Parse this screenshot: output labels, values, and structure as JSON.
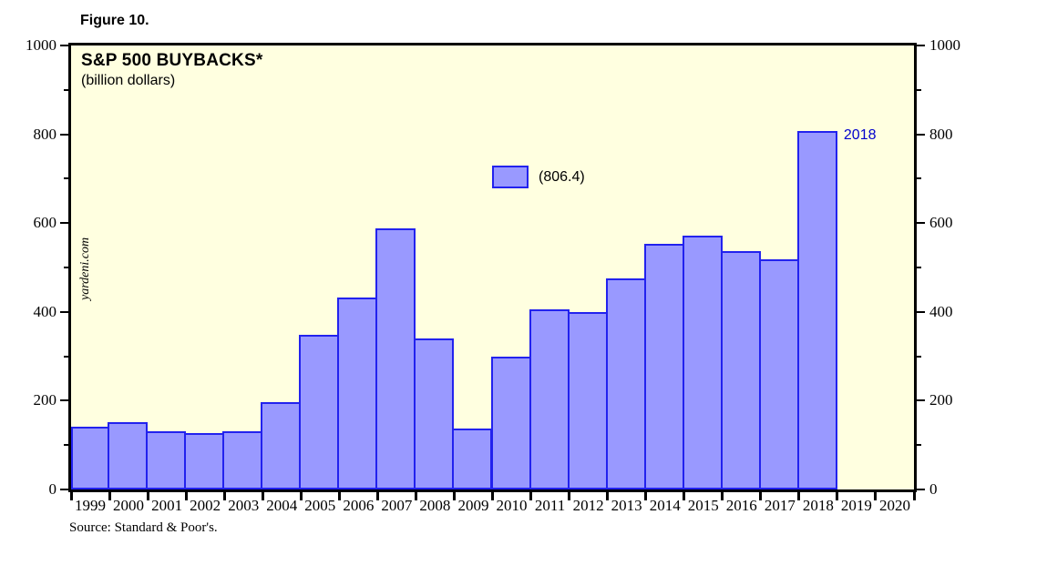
{
  "figure": {
    "label": "Figure 10."
  },
  "chart": {
    "title": "S&P 500 BUYBACKS*",
    "subtitle": "(billion dollars)",
    "watermark": "yardeni.com",
    "legend": {
      "value_label": "(806.4)"
    },
    "source": "Source: Standard & Poor's."
  },
  "colors": {
    "plot_background": "#ffffe0",
    "bar_fill": "#9999ff",
    "bar_border": "#2222ee",
    "axis": "#000000",
    "annotation_blue": "#0000cc",
    "page_background": "#ffffff"
  },
  "chart_data": {
    "type": "bar",
    "title": "S&P 500 BUYBACKS*",
    "subtitle": "(billion dollars)",
    "xlabel": "",
    "ylabel": "billion dollars",
    "categories": [
      "1999",
      "2000",
      "2001",
      "2002",
      "2003",
      "2004",
      "2005",
      "2006",
      "2007",
      "2008",
      "2009",
      "2010",
      "2011",
      "2012",
      "2013",
      "2014",
      "2015",
      "2016",
      "2017",
      "2018",
      "2019",
      "2020"
    ],
    "values": [
      142.0,
      151.0,
      132.2,
      127.3,
      131.1,
      197.5,
      349.2,
      431.8,
      589.1,
      339.6,
      137.6,
      298.8,
      405.1,
      398.9,
      475.6,
      553.3,
      572.2,
      536.4,
      519.4,
      806.4,
      null,
      null
    ],
    "ylim": [
      0,
      1000
    ],
    "yticks_major": [
      0,
      200,
      400,
      600,
      800,
      1000
    ],
    "yticks_minor": [
      100,
      300,
      500,
      700,
      900
    ],
    "dual_axis_labels": true,
    "grid": false,
    "legend_position": "upper-center-inside",
    "legend_label": "(806.4)",
    "annotations": [
      {
        "text": "2018",
        "category": "2018",
        "color": "#0000cc"
      }
    ]
  }
}
